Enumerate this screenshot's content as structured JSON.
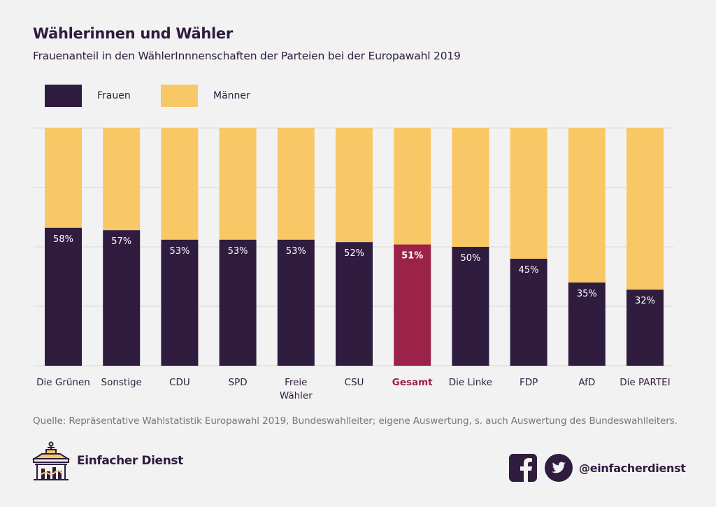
{
  "header": {
    "title": "Wählerinnen und Wähler",
    "subtitle": "Frauenanteil in den WählerInnnenschaften der Parteien bei der Europawahl 2019"
  },
  "colors": {
    "frauen": "#2f1c3f",
    "maenner": "#f9c866",
    "highlight": "#9c2249",
    "grid": "#e0e0e0",
    "label_light": "#ffffff"
  },
  "chart_data": {
    "type": "bar",
    "stacked": true,
    "title": "Wählerinnen und Wähler",
    "subtitle": "Frauenanteil in den WählerInnnenschaften der Parteien bei der Europawahl 2019",
    "xlabel": "",
    "ylabel": "",
    "ylim": [
      0,
      100
    ],
    "grid": true,
    "gridlines": [
      0,
      25,
      50,
      75,
      100
    ],
    "legend_position": "top-left",
    "categories": [
      "Die Grünen",
      "Sonstige",
      "CDU",
      "SPD",
      "Freie Wähler",
      "CSU",
      "Gesamt",
      "Die Linke",
      "FDP",
      "AfD",
      "Die PARTEI"
    ],
    "category_lines": [
      [
        "Die Grünen"
      ],
      [
        "Sonstige"
      ],
      [
        "CDU"
      ],
      [
        "SPD"
      ],
      [
        "Freie",
        "Wähler"
      ],
      [
        "CSU"
      ],
      [
        "Gesamt"
      ],
      [
        "Die Linke"
      ],
      [
        "FDP"
      ],
      [
        "AfD"
      ],
      [
        "Die PARTEI"
      ]
    ],
    "highlight_category": "Gesamt",
    "series": [
      {
        "name": "Frauen",
        "values": [
          58,
          57,
          53,
          53,
          53,
          52,
          51,
          50,
          45,
          35,
          32
        ]
      },
      {
        "name": "Männer",
        "values": [
          42,
          43,
          47,
          47,
          47,
          48,
          49,
          50,
          55,
          65,
          68
        ]
      }
    ],
    "data_labels": [
      "58%",
      "57%",
      "53%",
      "53%",
      "53%",
      "52%",
      "51%",
      "50%",
      "45%",
      "35%",
      "32%"
    ]
  },
  "legend": {
    "items": [
      {
        "label": "Frauen"
      },
      {
        "label": "Männer"
      }
    ]
  },
  "footer": {
    "source": "Quelle: Repräsentative Wahlstatistik Europawahl 2019, Bundeswahlleiter; eigene Auswertung, s. auch Auswertung des Bundeswahlleiters.",
    "brand": "Einfacher Dienst",
    "handle": "@einfacherdienst",
    "icons": [
      "brandenburg-gate-logo-icon",
      "facebook-icon",
      "twitter-icon"
    ]
  }
}
